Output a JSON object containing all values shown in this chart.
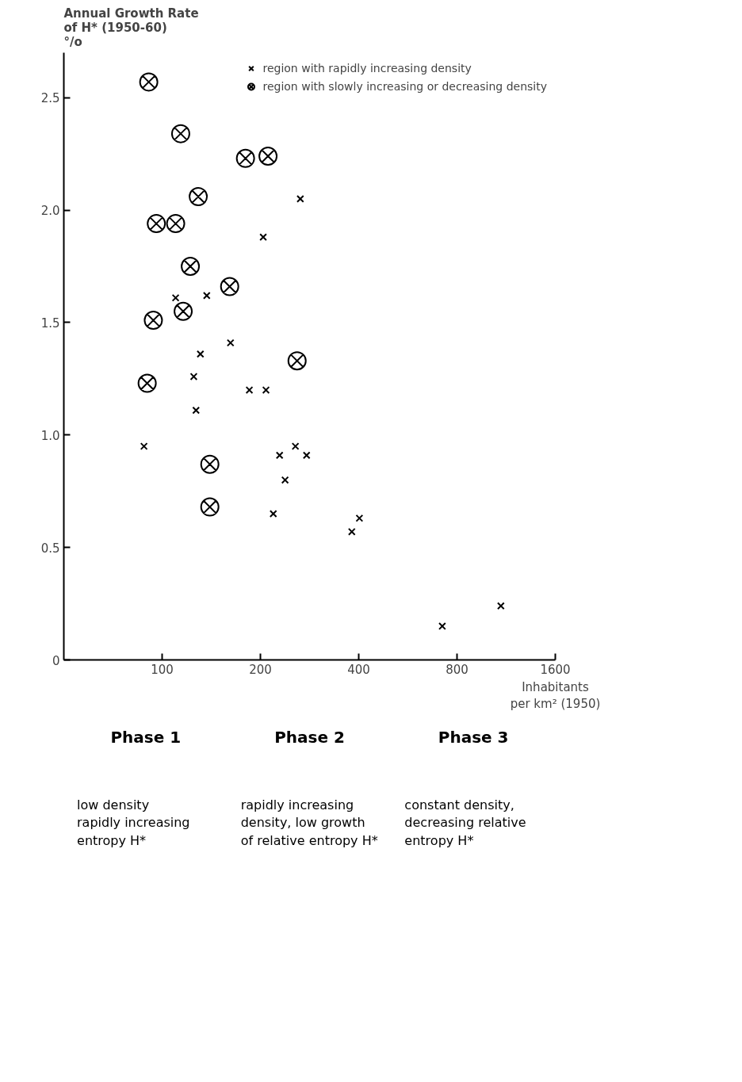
{
  "chart_data": {
    "type": "scatter",
    "ylabel": "Annual Growth Rate\nof H* (1950-60)\n°/o",
    "xlabel": "Inhabitants\nper km² (1950)",
    "log": "x",
    "xlim": [
      50,
      1600
    ],
    "ylim": [
      0,
      2.7
    ],
    "xticks": [
      100,
      200,
      400,
      800,
      1600
    ],
    "yticks": [
      {
        "value": 0,
        "label": "0"
      },
      0.5,
      {
        "value": 1,
        "label": "1.0"
      },
      1.5,
      {
        "value": 2,
        "label": "2.0"
      },
      2.5
    ],
    "grid": false,
    "legend": "top right",
    "series": [
      {
        "name": "region with rapidly increasing density",
        "color": "#000000",
        "marker": "cross",
        "x": [
          265,
          204,
          110,
          137,
          162,
          131,
          125,
          127,
          185,
          208,
          88,
          256,
          229,
          277,
          238,
          219,
          402,
          381,
          721,
          1090
        ],
        "values": [
          2.05,
          1.88,
          1.61,
          1.62,
          1.41,
          1.36,
          1.26,
          1.11,
          1.2,
          1.2,
          0.95,
          0.95,
          0.91,
          0.91,
          0.8,
          0.65,
          0.63,
          0.57,
          0.15,
          0.24
        ]
      },
      {
        "name": "region with slowly increasing or decreasing density",
        "color": "#000000",
        "marker": "circle",
        "x": [
          91,
          114,
          180,
          211,
          129,
          96,
          110,
          122,
          161,
          94,
          116,
          259,
          90,
          140,
          140
        ],
        "values": [
          2.57,
          2.34,
          2.23,
          2.24,
          2.06,
          1.94,
          1.94,
          1.75,
          1.66,
          1.51,
          1.55,
          1.33,
          1.23,
          0.87,
          0.68
        ]
      }
    ],
    "annotations": [
      "Phase 1",
      "low density\nrapidly increasing\nentropy H*",
      "Phase 2",
      "rapidly increasing\ndensity, low growth\nof relative entropy H*",
      "Phase 3",
      "constant density,\ndecreasing relative\nentropy H*"
    ]
  }
}
